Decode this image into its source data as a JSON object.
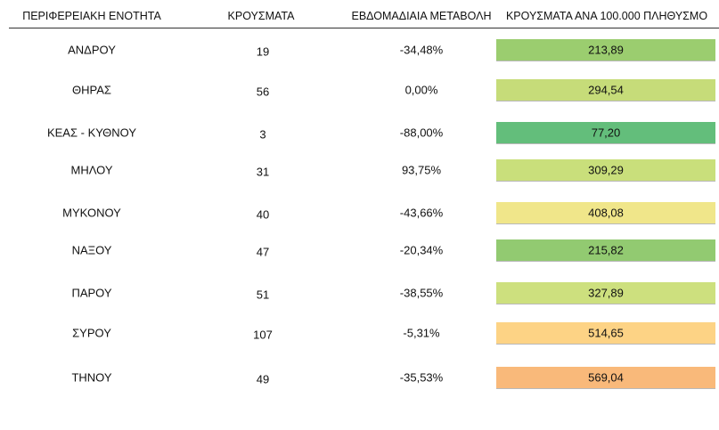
{
  "table": {
    "header": [
      "ΠΕΡΙΦΕΡΕΙΑΚΗ ΕΝΟΤΗΤΑ",
      "ΚΡΟΥΣΜΑΤΑ",
      "ΕΒΔΟΜΑΔΙΑΙΑ ΜΕΤΑΒΟΛΗ",
      "ΚΡΟΥΣΜΑΤΑ ΑΝΑ 100.000 ΠΛΗΘΥΣΜΟ"
    ],
    "rows": [
      [
        "ΑΝΔΡΟΥ",
        "19",
        "-34,48%",
        "213,89"
      ],
      [
        "ΘΗΡΑΣ",
        "56",
        "0,00%",
        "294,54"
      ],
      [
        "ΚΕΑΣ - ΚΥΘΝΟΥ",
        "3",
        "-88,00%",
        "77,20"
      ],
      [
        "ΜΗΛΟΥ",
        "31",
        "93,75%",
        "309,29"
      ],
      [
        "ΜΥΚΟΝΟΥ",
        "40",
        "-43,66%",
        "408,08"
      ],
      [
        "ΝΑΞΟΥ",
        "47",
        "-20,34%",
        "215,82"
      ],
      [
        "ΠΑΡΟΥ",
        "51",
        "-38,55%",
        "327,89"
      ],
      [
        "ΣΥΡΟΥ",
        "107",
        "-5,31%",
        "514,65"
      ],
      [
        "ΤΗΝΟΥ",
        "49",
        "-35,53%",
        "569,04"
      ]
    ],
    "rate_colors": [
      "#9bcd6f",
      "#c6dc79",
      "#63be7b",
      "#c9df7b",
      "#f0e68a",
      "#92ca71",
      "#cde07e",
      "#fdd385",
      "#f9b97a"
    ]
  }
}
